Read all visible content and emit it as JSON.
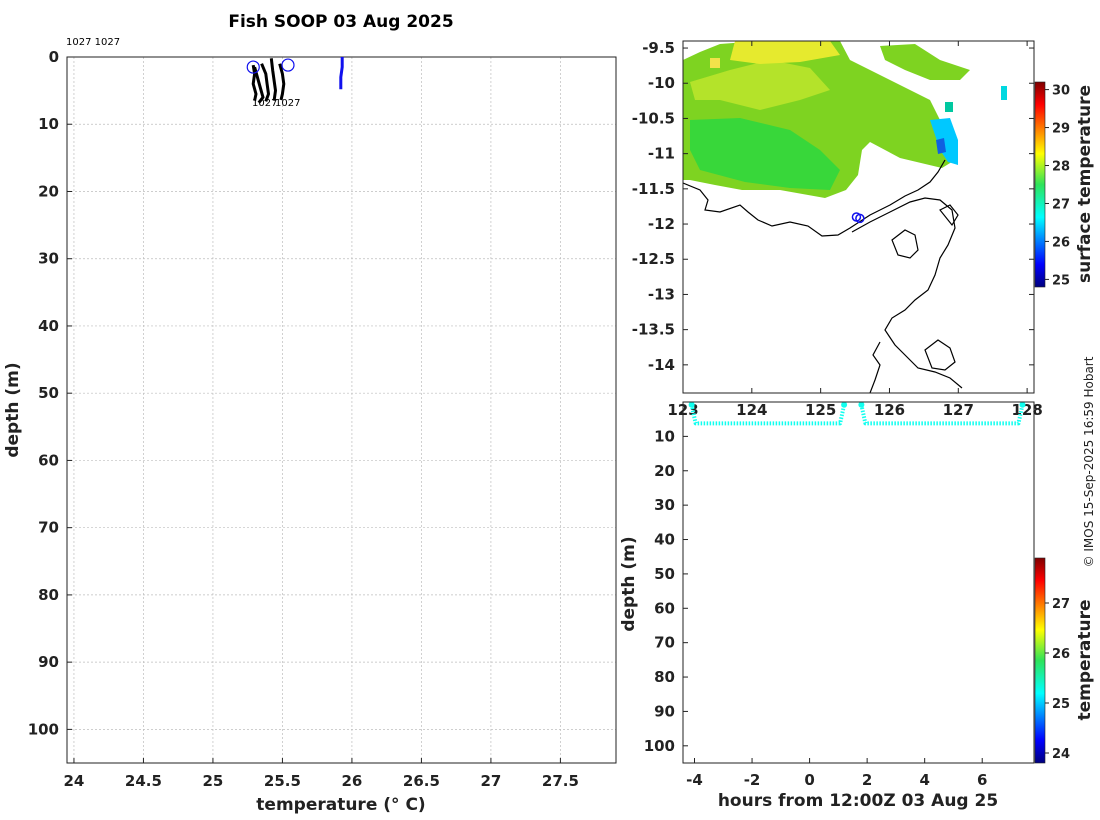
{
  "title": "Fish SOOP 03 Aug 2025",
  "credit": "© IMOS 15-Sep-2025 16:59 Hobart",
  "chart_data": [
    {
      "type": "line",
      "name": "profile",
      "xlabel": "temperature (° C)",
      "ylabel": "depth (m)",
      "xlim": [
        23.95,
        27.9
      ],
      "ylim": [
        105,
        0
      ],
      "y_reversed": true,
      "grid": true,
      "xticks": [
        24,
        24.5,
        25,
        25.5,
        26,
        26.5,
        27,
        27.5
      ],
      "yticks": [
        0,
        10,
        20,
        30,
        40,
        50,
        60,
        70,
        80,
        90,
        100
      ],
      "annotation": "1027 1027",
      "profile_label": "1027",
      "series": [
        {
          "name": "cast-1",
          "color": "#000000",
          "x": [
            25.29,
            25.3,
            25.29,
            25.31,
            25.3
          ],
          "y": [
            1.2,
            2.5,
            4,
            5.5,
            6.5
          ]
        },
        {
          "name": "cast-2",
          "color": "#000000",
          "x": [
            25.3,
            25.32,
            25.34,
            25.36,
            25.33
          ],
          "y": [
            1.5,
            3,
            4.5,
            6,
            6.8
          ]
        },
        {
          "name": "cast-3",
          "color": "#000000",
          "x": [
            25.35,
            25.38,
            25.39,
            25.4,
            25.38
          ],
          "y": [
            1,
            2.5,
            4,
            5.5,
            6.6
          ]
        },
        {
          "name": "cast-4",
          "color": "#000000",
          "x": [
            25.42,
            25.43,
            25.44,
            25.45,
            25.44
          ],
          "y": [
            0.2,
            2,
            3.5,
            5,
            6.5
          ]
        },
        {
          "name": "cast-5",
          "color": "#000000",
          "x": [
            25.48,
            25.5,
            25.51,
            25.5,
            25.49
          ],
          "y": [
            1,
            2.5,
            4,
            5.5,
            6.4
          ]
        },
        {
          "name": "cast-6",
          "color": "#1010ee",
          "x": [
            25.93,
            25.93,
            25.92,
            25.92
          ],
          "y": [
            0,
            1.5,
            3,
            4.8
          ]
        }
      ],
      "markers": [
        {
          "x": 25.29,
          "y": 1.5,
          "color": "#1010ee"
        },
        {
          "x": 25.54,
          "y": 1.2,
          "color": "#1010ee"
        }
      ]
    },
    {
      "type": "heatmap",
      "name": "map",
      "colorbar_label": "surface temperature",
      "clim": [
        24.8,
        30.2
      ],
      "cbar_ticks": [
        25,
        26,
        27,
        28,
        29,
        30
      ],
      "xlim": [
        123,
        128.1
      ],
      "ylim": [
        -14.4,
        -9.4
      ],
      "xticks": [
        123,
        124,
        125,
        126,
        127,
        128
      ],
      "yticks": [
        -9.5,
        -10,
        -10.5,
        -11,
        -11.5,
        -12,
        -12.5,
        -13,
        -13.5,
        -14
      ],
      "track": [
        {
          "lon": 125.52,
          "lat": -11.9
        },
        {
          "lon": 125.57,
          "lat": -11.92
        }
      ]
    },
    {
      "type": "scatter",
      "name": "depth-time",
      "xlabel": "hours from 12:00Z 03 Aug 25",
      "ylabel": "depth (m)",
      "colorbar_label": "temperature",
      "clim": [
        23.8,
        27.9
      ],
      "cbar_ticks": [
        24,
        25,
        26,
        27
      ],
      "xlim": [
        -4.4,
        7.8
      ],
      "ylim": [
        105,
        0
      ],
      "xticks": [
        -4,
        -2,
        0,
        2,
        4,
        6
      ],
      "yticks": [
        10,
        20,
        30,
        40,
        50,
        60,
        70,
        80,
        90,
        100
      ],
      "segments": [
        {
          "x0": -4.1,
          "x1": 1.2,
          "surface_depth": 0.8,
          "depth": 6.2,
          "temperature": 25.4
        },
        {
          "x0": 1.8,
          "x1": 7.4,
          "surface_depth": 0.8,
          "depth": 6.2,
          "temperature": 25.4
        }
      ]
    }
  ]
}
